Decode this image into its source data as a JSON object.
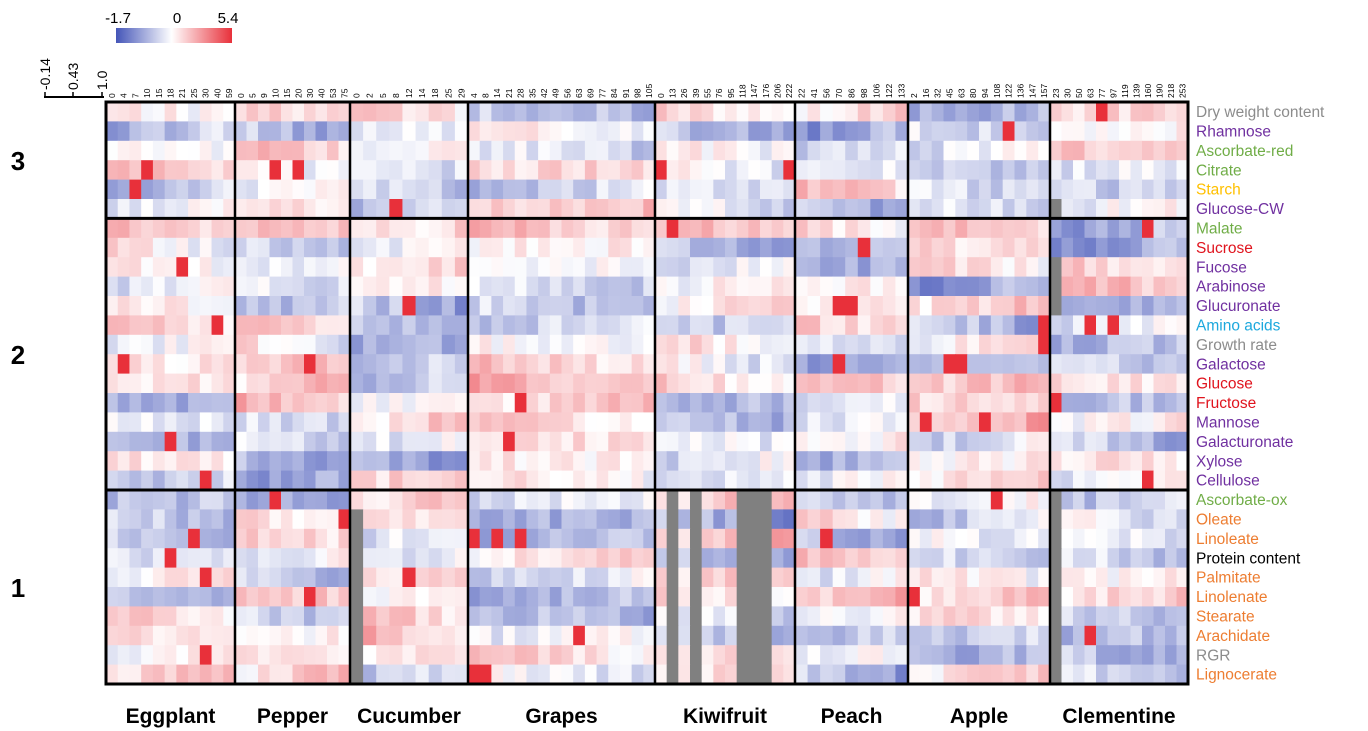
{
  "chart_data": {
    "type": "heatmap",
    "title": "",
    "color_scale": {
      "min": -1.7,
      "mid": 0,
      "max": 5.4,
      "tick_labels": [
        "-1.7",
        "0",
        "5.4"
      ],
      "colors": {
        "low": "#4455b8",
        "mid": "#ffffff",
        "high": "#e8303a",
        "missing": "#808080"
      }
    },
    "dendrogram_ticks": [
      "-0.14",
      "0.43",
      "1.0"
    ],
    "clusters": [
      {
        "label": "3",
        "variables": [
          "Dry weight content",
          "Rhamnose",
          "Ascorbate-red",
          "Citrate",
          "Starch",
          "Glucose-CW"
        ]
      },
      {
        "label": "2",
        "variables": [
          "Malate",
          "Sucrose",
          "Fucose",
          "Arabinose",
          "Glucuronate",
          "Amino acids",
          "Growth rate",
          "Galactose",
          "Glucose",
          "Fructose",
          "Mannose",
          "Galacturonate",
          "Xylose",
          "Cellulose"
        ]
      },
      {
        "label": "1",
        "variables": [
          "Ascorbate-ox",
          "Oleate",
          "Linoleate",
          "Protein content",
          "Palmitate",
          "Linolenate",
          "Stearate",
          "Arachidate",
          "RGR",
          "Lignocerate"
        ]
      }
    ],
    "variable_colors": {
      "Dry weight content": "#8c8c8c",
      "Rhamnose": "#7030a0",
      "Ascorbate-red": "#70ad47",
      "Citrate": "#70ad47",
      "Starch": "#ffc000",
      "Glucose-CW": "#7030a0",
      "Malate": "#70ad47",
      "Sucrose": "#e0141e",
      "Fucose": "#7030a0",
      "Arabinose": "#7030a0",
      "Glucuronate": "#7030a0",
      "Amino acids": "#1ca8dd",
      "Growth rate": "#8c8c8c",
      "Galactose": "#7030a0",
      "Glucose": "#e0141e",
      "Fructose": "#e0141e",
      "Mannose": "#7030a0",
      "Galacturonate": "#7030a0",
      "Xylose": "#7030a0",
      "Cellulose": "#7030a0",
      "Ascorbate-ox": "#70ad47",
      "Oleate": "#ed7d31",
      "Linoleate": "#ed7d31",
      "Protein content": "#000000",
      "Palmitate": "#ed7d31",
      "Linolenate": "#ed7d31",
      "Stearate": "#ed7d31",
      "Arachidate": "#ed7d31",
      "RGR": "#8c8c8c",
      "Lignocerate": "#ed7d31"
    },
    "fruits": [
      {
        "name": "Eggplant",
        "timepoints": [
          "0",
          "4",
          "7",
          "10",
          "15",
          "18",
          "21",
          "25",
          "30",
          "40",
          "59"
        ]
      },
      {
        "name": "Pepper",
        "timepoints": [
          "0",
          "5",
          "9",
          "10",
          "15",
          "20",
          "30",
          "40",
          "53",
          "75"
        ]
      },
      {
        "name": "Cucumber",
        "timepoints": [
          "0",
          "2",
          "5",
          "8",
          "12",
          "14",
          "18",
          "25",
          "29"
        ]
      },
      {
        "name": "Grapes",
        "timepoints": [
          "4",
          "8",
          "14",
          "21",
          "28",
          "35",
          "42",
          "49",
          "56",
          "63",
          "69",
          "77",
          "84",
          "91",
          "98",
          "105"
        ]
      },
      {
        "name": "Kiwifruit",
        "timepoints": [
          "0",
          "13",
          "26",
          "39",
          "55",
          "76",
          "95",
          "118",
          "147",
          "176",
          "206",
          "222"
        ]
      },
      {
        "name": "Peach",
        "timepoints": [
          "22",
          "41",
          "56",
          "70",
          "86",
          "98",
          "106",
          "122",
          "133"
        ]
      },
      {
        "name": "Apple",
        "timepoints": [
          "2",
          "16",
          "32",
          "45",
          "63",
          "80",
          "94",
          "108",
          "122",
          "136",
          "147",
          "157"
        ]
      },
      {
        "name": "Clementine",
        "timepoints": [
          "23",
          "30",
          "50",
          "63",
          "77",
          "97",
          "119",
          "139",
          "160",
          "190",
          "218",
          "253"
        ]
      }
    ],
    "pattern_seed": 7
  }
}
